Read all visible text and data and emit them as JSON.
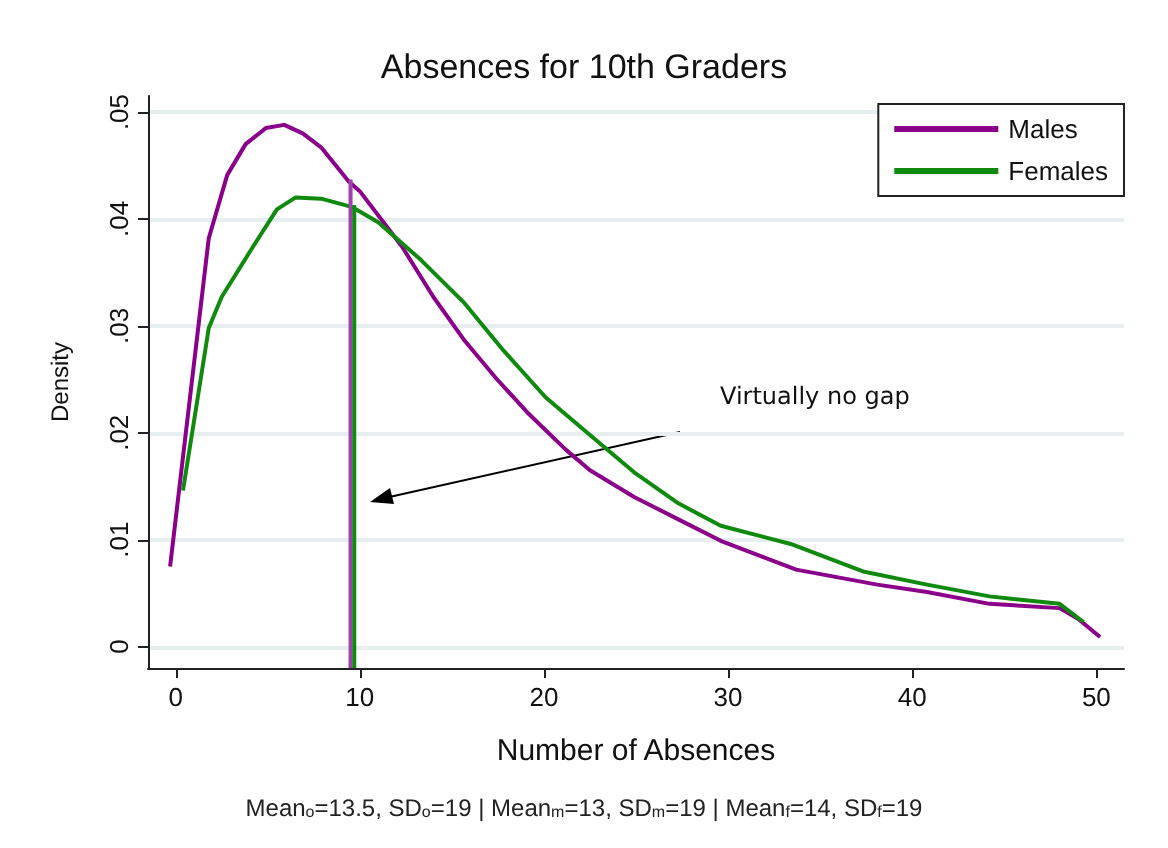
{
  "chart_data": {
    "type": "line",
    "title": "Absences for 10th Graders",
    "xlabel": "Number of Absences",
    "ylabel": "Density",
    "annotations": [
      "Virtually no gap",
      "Mean$_{o}$=13.5, SD$_{o}$=19 | Mean$_{m}$=13, SD$_{m}$=19 | Mean$_{f}$=14, SD$_{f}$=19"
    ],
    "xlim": [
      -1.5,
      51.5
    ],
    "xticks": [
      0,
      10,
      20,
      30,
      40,
      50
    ],
    "ylim": [
      -0.002,
      0.0515
    ],
    "yticks": [
      0,
      {
        "value": 0.01,
        "label": ".01"
      },
      {
        "value": 0.02,
        "label": ".02"
      },
      {
        "value": 0.03,
        "label": ".03"
      },
      {
        "value": 0.04,
        "label": ".04"
      },
      {
        "value": 0.05,
        "label": ".05"
      }
    ],
    "grid": "y",
    "legend": "top right",
    "marker": "none",
    "line_style": "solid",
    "series": [
      {
        "name": "Males",
        "color": "#8b008b",
        "x": [
          -0.3,
          1.8,
          2.8,
          3.8,
          4.9,
          5.9,
          6.9,
          7.9,
          9.4,
          10,
          12.3,
          14,
          15.7,
          17.4,
          19.1,
          21.2,
          22.5,
          24.9,
          27.3,
          29.6,
          33.7,
          38.1,
          40.8,
          44.2,
          48,
          49,
          50.2
        ],
        "values": [
          0.0075,
          0.0382,
          0.0441,
          0.047,
          0.0485,
          0.0488,
          0.048,
          0.0467,
          0.0435,
          0.0426,
          0.0374,
          0.0327,
          0.0286,
          0.0251,
          0.0219,
          0.0184,
          0.0165,
          0.014,
          0.0119,
          0.0099,
          0.0072,
          0.0058,
          0.0051,
          0.004,
          0.0036,
          0.0026,
          0.0009
        ]
      },
      {
        "name": "Females",
        "color": "#0f8a0f",
        "x": [
          0.4,
          1.8,
          2.5,
          4.2,
          5.5,
          6.5,
          7.9,
          9.6,
          11,
          13.3,
          15.7,
          17.8,
          20.1,
          22.5,
          24.9,
          27.3,
          29.6,
          33.4,
          37.4,
          40.8,
          44.2,
          48,
          49.3
        ],
        "values": [
          0.0146,
          0.0298,
          0.0327,
          0.0374,
          0.0409,
          0.042,
          0.0419,
          0.0411,
          0.0397,
          0.0362,
          0.0321,
          0.0277,
          0.0233,
          0.0198,
          0.0163,
          0.0134,
          0.0113,
          0.0096,
          0.007,
          0.0058,
          0.0047,
          0.004,
          0.0023
        ]
      },
      {
        "color": "#a040b0",
        "x": [
          9.5,
          9.5
        ],
        "values": [
          -0.002,
          0.0437
        ]
      },
      {
        "color": "#0f8a0f",
        "x": [
          9.7,
          9.7
        ],
        "values": [
          -0.002,
          0.0413
        ]
      }
    ]
  }
}
